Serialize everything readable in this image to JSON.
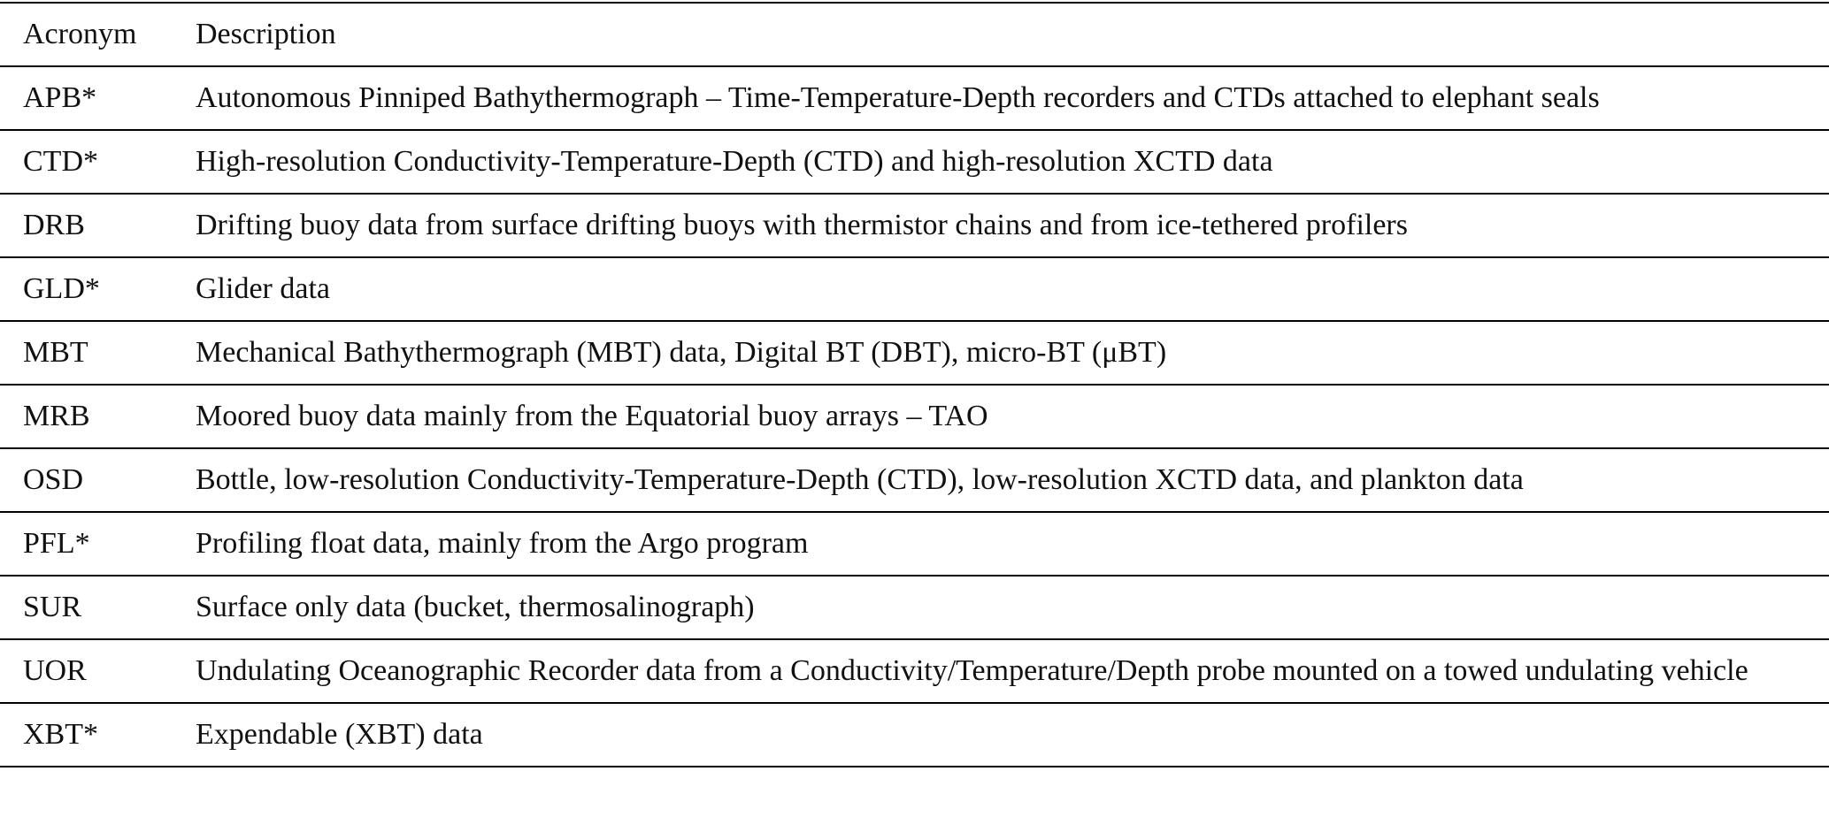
{
  "table": {
    "header": [
      "Acronym",
      "Description"
    ],
    "rows": [
      [
        "APB*",
        "Autonomous Pinniped Bathythermograph – Time-Temperature-Depth recorders and CTDs attached to elephant seals"
      ],
      [
        "CTD*",
        "High-resolution Conductivity-Temperature-Depth (CTD) and high-resolution XCTD data"
      ],
      [
        "DRB",
        "Drifting buoy data from surface drifting buoys with thermistor chains and from ice-tethered profilers"
      ],
      [
        "GLD*",
        "Glider data"
      ],
      [
        "MBT",
        "Mechanical Bathythermograph (MBT) data, Digital BT (DBT), micro-BT (μBT)"
      ],
      [
        "MRB",
        "Moored buoy data mainly from the Equatorial buoy arrays – TAO"
      ],
      [
        "OSD",
        "Bottle, low-resolution Conductivity-Temperature-Depth (CTD), low-resolution XCTD data, and plankton data"
      ],
      [
        "PFL*",
        "Profiling float data, mainly from the Argo program"
      ],
      [
        "SUR",
        "Surface only data (bucket, thermosalinograph)"
      ],
      [
        "UOR",
        "Undulating Oceanographic Recorder data from a Conductivity/Temperature/Depth probe mounted on a towed undulating vehicle"
      ],
      [
        "XBT*",
        "Expendable (XBT) data"
      ]
    ]
  }
}
